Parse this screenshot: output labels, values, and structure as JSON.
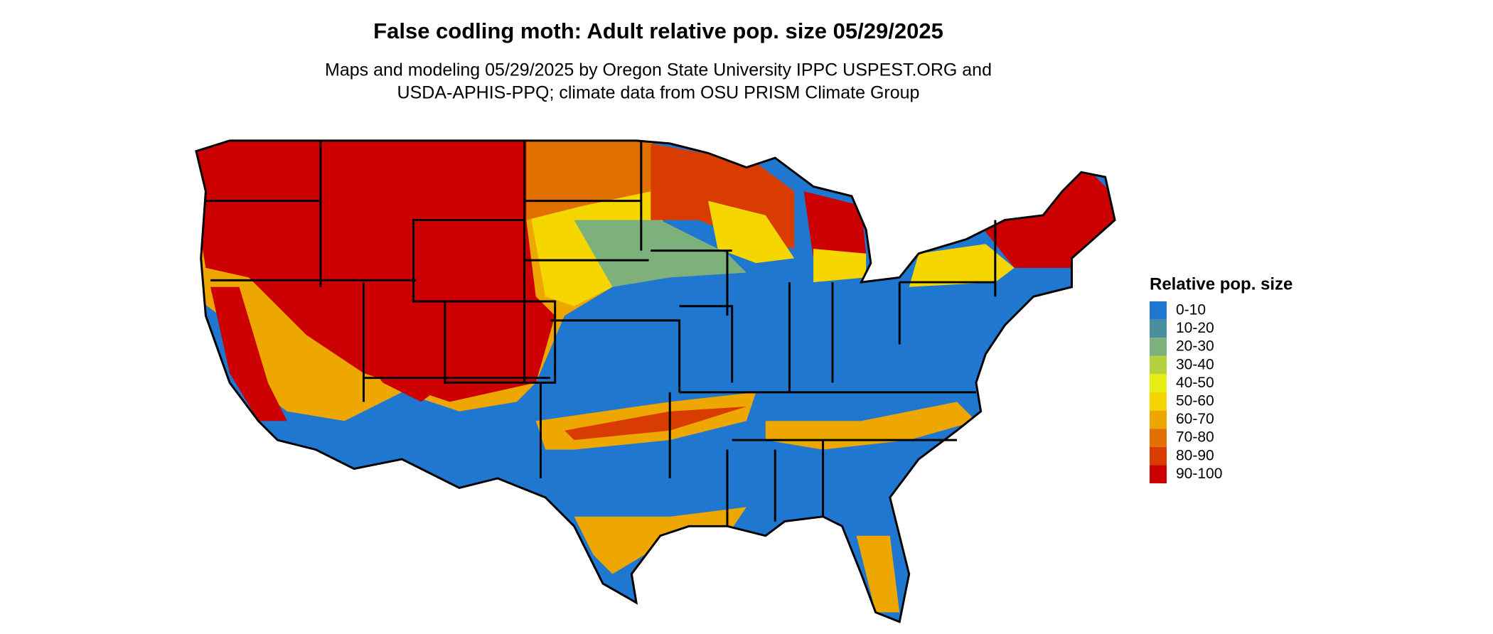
{
  "header": {
    "title": "False codling moth: Adult relative pop. size 05/29/2025",
    "subtitle_lines": [
      "Maps and modeling 05/29/2025 by Oregon State University IPPC USPEST.ORG and",
      "USDA-APHIS-PPQ; climate data from OSU PRISM Climate Group"
    ]
  },
  "legend": {
    "title": "Relative pop. size",
    "items": [
      {
        "label": "0-10",
        "color": "#1f77cf"
      },
      {
        "label": "10-20",
        "color": "#4a8fa0"
      },
      {
        "label": "20-30",
        "color": "#7db07a"
      },
      {
        "label": "30-40",
        "color": "#b3d23c"
      },
      {
        "label": "40-50",
        "color": "#e6ee14"
      },
      {
        "label": "50-60",
        "color": "#f5d600"
      },
      {
        "label": "60-70",
        "color": "#eea600"
      },
      {
        "label": "70-80",
        "color": "#e27000"
      },
      {
        "label": "80-90",
        "color": "#d83c00"
      },
      {
        "label": "90-100",
        "color": "#cc0000"
      }
    ]
  }
}
